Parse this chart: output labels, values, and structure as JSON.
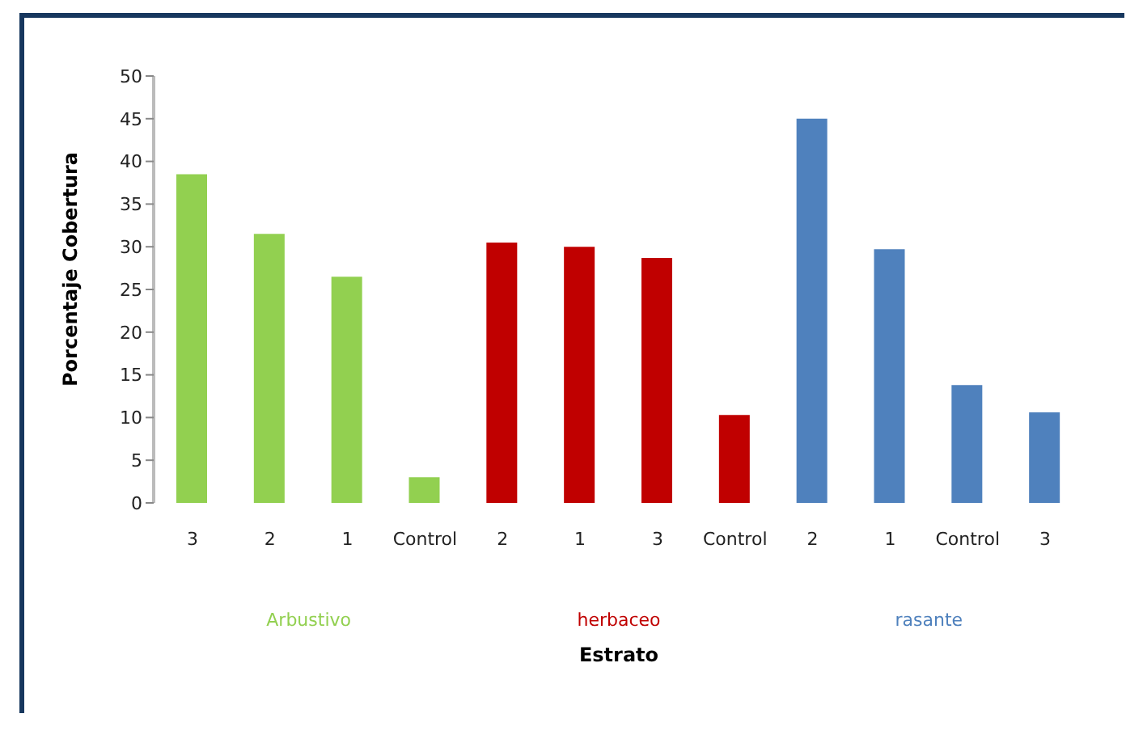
{
  "chart_data": {
    "type": "bar",
    "xlabel": "Estrato",
    "ylabel": "Porcentaje Cobertura",
    "categories": [
      "3",
      "2",
      "1",
      "Control",
      "2",
      "1",
      "3",
      "Control",
      "2",
      "1",
      "Control",
      "3"
    ],
    "stacked": true,
    "ylim": [
      0,
      50
    ],
    "yticks": [
      0,
      5,
      10,
      15,
      20,
      25,
      30,
      35,
      40,
      45,
      50
    ],
    "grid": false,
    "legend": false,
    "series": [
      {
        "name": "Arbustivo",
        "color": "#92d050",
        "values": [
          38.5,
          31.5,
          26.5,
          3,
          null,
          null,
          null,
          null,
          null,
          null,
          null,
          null
        ]
      },
      {
        "name": "herbaceo",
        "color": "#c00000",
        "values": [
          null,
          null,
          null,
          null,
          30.5,
          30,
          28.7,
          10.3,
          null,
          null,
          null,
          null
        ]
      },
      {
        "name": "rasante",
        "color": "#4f81bd",
        "values": [
          null,
          null,
          null,
          null,
          null,
          null,
          null,
          null,
          45,
          29.7,
          13.8,
          10.6
        ]
      }
    ]
  }
}
